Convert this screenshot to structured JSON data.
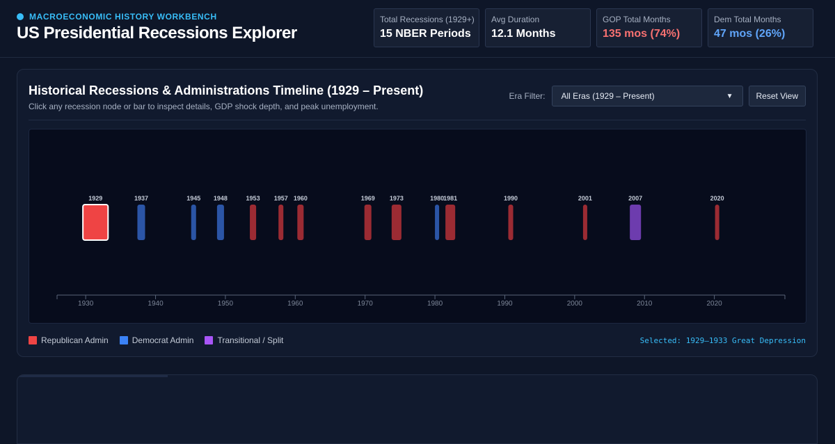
{
  "header": {
    "eyebrow": "MACROECONOMIC HISTORY WORKBENCH",
    "title": "US Presidential Recessions Explorer"
  },
  "stats": [
    {
      "label": "Total Recessions (1929+)",
      "value": "15 NBER Periods",
      "tone": "default"
    },
    {
      "label": "Avg Duration",
      "value": "12.1 Months",
      "tone": "default"
    },
    {
      "label": "GOP Total Months",
      "value": "135 mos (74%)",
      "tone": "gop"
    },
    {
      "label": "Dem Total Months",
      "value": "47 mos (26%)",
      "tone": "dem"
    }
  ],
  "panel": {
    "title": "Historical Recessions & Administrations Timeline (1929 – Present)",
    "subtitle": "Click any recession node or bar to inspect details, GDP shock depth, and peak unemployment.",
    "era_label": "Era Filter:",
    "era_selected": "All Eras (1929 – Present)",
    "reset_label": "Reset View"
  },
  "colors": {
    "republican": "#ef4444",
    "democrat": "#3b82f6",
    "transitional": "#a855f7",
    "accent": "#38bdf8"
  },
  "chart_data": {
    "type": "timeline",
    "xlim": [
      1925.9,
      2030.1
    ],
    "x_ticks": [
      1930,
      1940,
      1950,
      1960,
      1970,
      1980,
      1990,
      2000,
      2010,
      2020
    ],
    "recessions": [
      {
        "label": "1929",
        "start": 1929.6,
        "end": 1933.2,
        "party": "republican",
        "selected": true
      },
      {
        "label": "1937",
        "start": 1937.4,
        "end": 1938.5,
        "party": "democrat"
      },
      {
        "label": "1945",
        "start": 1945.1,
        "end": 1945.8,
        "party": "democrat"
      },
      {
        "label": "1948",
        "start": 1948.8,
        "end": 1949.8,
        "party": "democrat"
      },
      {
        "label": "1953",
        "start": 1953.5,
        "end": 1954.4,
        "party": "republican"
      },
      {
        "label": "1957",
        "start": 1957.6,
        "end": 1958.3,
        "party": "republican"
      },
      {
        "label": "1960",
        "start": 1960.3,
        "end": 1961.2,
        "party": "republican"
      },
      {
        "label": "1969",
        "start": 1969.9,
        "end": 1970.9,
        "party": "republican"
      },
      {
        "label": "1973",
        "start": 1973.8,
        "end": 1975.2,
        "party": "republican"
      },
      {
        "label": "1980",
        "start": 1980.0,
        "end": 1980.6,
        "party": "democrat"
      },
      {
        "label": "1981",
        "start": 1981.5,
        "end": 1982.9,
        "party": "republican"
      },
      {
        "label": "1990",
        "start": 1990.5,
        "end": 1991.2,
        "party": "republican"
      },
      {
        "label": "2001",
        "start": 2001.2,
        "end": 2001.8,
        "party": "republican"
      },
      {
        "label": "2007",
        "start": 2007.9,
        "end": 2009.5,
        "party": "transitional"
      },
      {
        "label": "2020",
        "start": 2020.1,
        "end": 2020.6,
        "party": "republican"
      }
    ]
  },
  "legend": [
    {
      "label": "Republican Admin",
      "party": "republican"
    },
    {
      "label": "Democrat Admin",
      "party": "democrat"
    },
    {
      "label": "Transitional / Split",
      "party": "transitional"
    }
  ],
  "selected_text": "Selected: 1929–1933 Great Depression"
}
